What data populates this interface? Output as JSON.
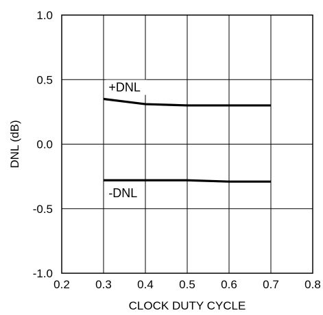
{
  "chart_data": {
    "type": "line",
    "title": "",
    "xlabel": "CLOCK DUTY CYCLE",
    "ylabel": "DNL (dB)",
    "xlim": [
      0.2,
      0.8
    ],
    "ylim": [
      -1.0,
      1.0
    ],
    "x_ticks": [
      "0.2",
      "0.3",
      "0.4",
      "0.5",
      "0.6",
      "0.7",
      "0.8"
    ],
    "y_ticks": [
      "1.0",
      "0.5",
      "0.0",
      "-0.5",
      "-1.0"
    ],
    "x_tick_values": [
      0.2,
      0.3,
      0.4,
      0.5,
      0.6,
      0.7,
      0.8
    ],
    "y_tick_values": [
      1.0,
      0.5,
      0.0,
      -0.5,
      -1.0
    ],
    "grid": true,
    "series": [
      {
        "name": "+DNL",
        "x": [
          0.3,
          0.4,
          0.5,
          0.6,
          0.7
        ],
        "y": [
          0.35,
          0.31,
          0.3,
          0.3,
          0.3
        ]
      },
      {
        "name": "-DNL",
        "x": [
          0.3,
          0.4,
          0.5,
          0.6,
          0.7
        ],
        "y": [
          -0.28,
          -0.28,
          -0.28,
          -0.29,
          -0.29
        ]
      }
    ],
    "annotations": [
      {
        "text": "+DNL",
        "series": 0
      },
      {
        "text": "-DNL",
        "series": 1
      }
    ]
  }
}
